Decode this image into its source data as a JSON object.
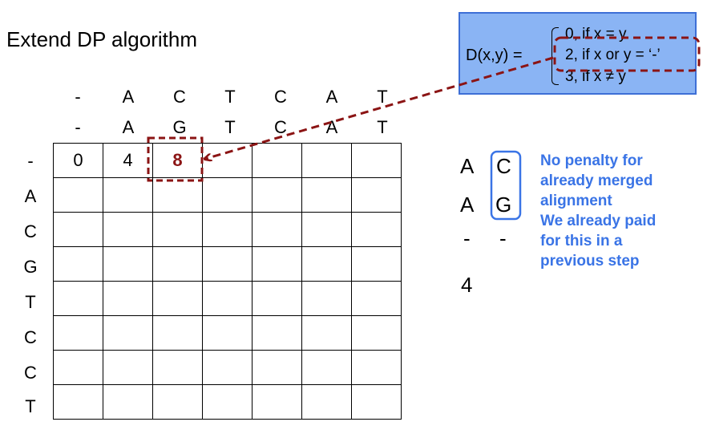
{
  "title": "Extend DP algorithm",
  "top_sequence_1": [
    "-",
    "A",
    "C",
    "T",
    "C",
    "A",
    "T"
  ],
  "top_sequence_2": [
    "-",
    "A",
    "G",
    "T",
    "C",
    "A",
    "T"
  ],
  "row_labels": [
    "-",
    "A",
    "C",
    "G",
    "T",
    "C",
    "C",
    "T"
  ],
  "grid_first_row": [
    "0",
    "4",
    "8",
    "",
    "",
    "",
    "",
    ""
  ],
  "formula": {
    "lhs": "D(x,y) =",
    "cases": [
      "0, if x = y",
      "2, if x or y = ‘-’",
      "3, if x ≠ y"
    ]
  },
  "alignment": {
    "row1": [
      "A",
      "C"
    ],
    "row2": [
      "A",
      "G"
    ],
    "row3": [
      "-",
      "-"
    ],
    "score": "4"
  },
  "note_lines": [
    "No penalty for",
    "already merged",
    "alignment",
    "We already paid",
    "for this in a",
    "previous step"
  ],
  "colors": {
    "highlight": "#8b1414",
    "formula_bg": "#8ab4f4",
    "note_text": "#3a74e6",
    "arrow": "#8b1414"
  }
}
